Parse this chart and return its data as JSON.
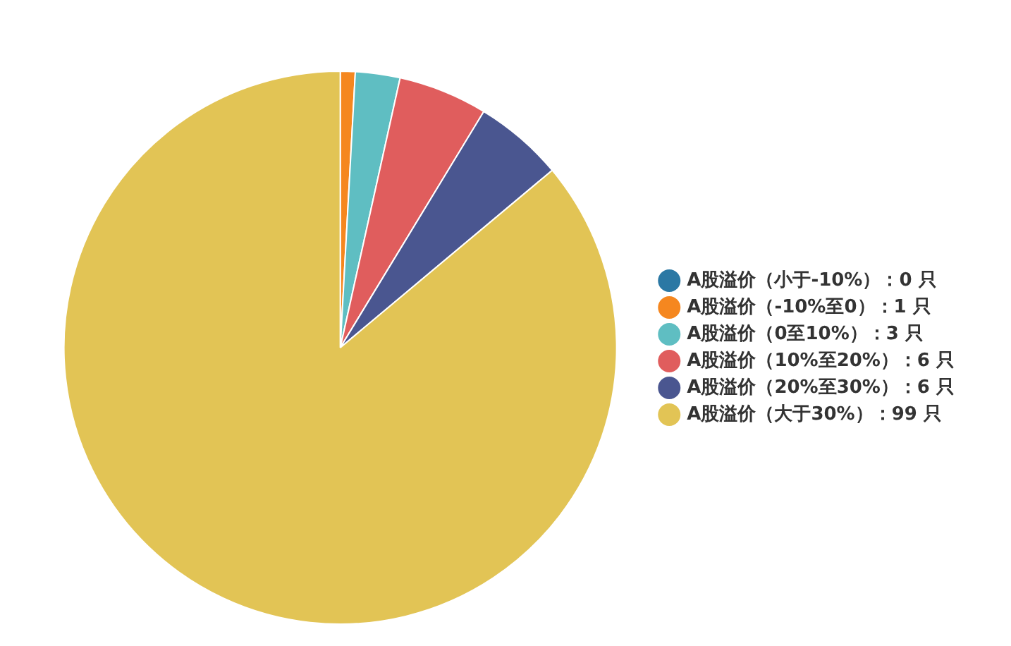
{
  "chart_data": {
    "type": "pie",
    "categories": [
      "A股溢价（小于-10%）：0 只",
      "A股溢价（-10%至0）：1 只",
      "A股溢价（0至10%）：3 只",
      "A股溢价（10%至20%）：6 只",
      "A股溢价（20%至30%）：6 只",
      "A股溢价（大于30%）：99 只"
    ],
    "values": [
      0,
      1,
      3,
      6,
      6,
      99
    ],
    "colors": [
      "#2b78a4",
      "#f5871f",
      "#5fbec2",
      "#e05d5d",
      "#4a5690",
      "#e2c455"
    ],
    "legend": "right"
  }
}
